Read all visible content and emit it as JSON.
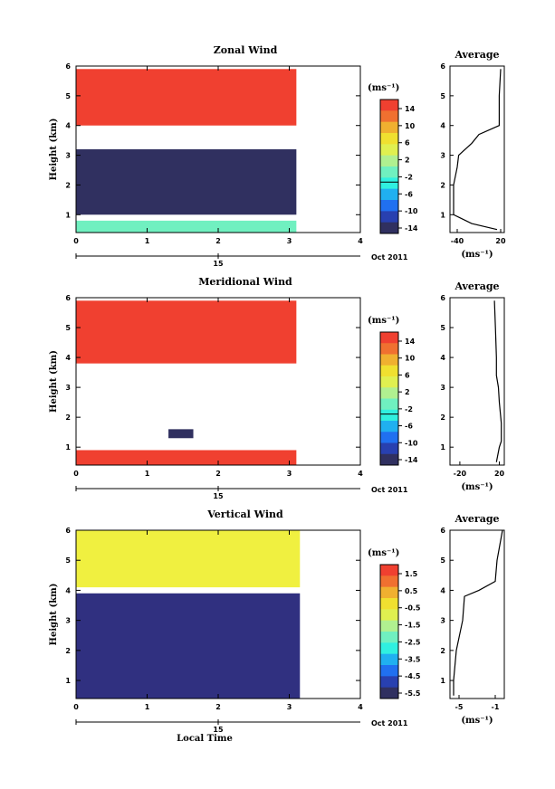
{
  "chart_data": [
    {
      "type": "heatmap",
      "title": "Zonal Wind",
      "ylabel": "Height (km)",
      "xlim": [
        0,
        4
      ],
      "ylim": [
        0.4,
        6
      ],
      "x_ticks": [
        "0",
        "1",
        "2",
        "3",
        "4"
      ],
      "y_ticks": [
        "1",
        "2",
        "3",
        "4",
        "5",
        "6"
      ],
      "date_ticks": [
        "15"
      ],
      "date_label": "Oct 2011",
      "colorbar": {
        "unit": "(ms⁻¹)",
        "ticks": [
          "14",
          "10",
          "6",
          "2",
          "-2",
          "-6",
          "-10",
          "-14"
        ],
        "range": [
          -16,
          16
        ]
      },
      "data_extent_x": [
        0,
        3.15
      ],
      "layers": [
        {
          "value": 16,
          "color": "#f04030",
          "y": [
            4.0,
            5.9
          ],
          "x": [
            0,
            3.1
          ]
        },
        {
          "value": -14,
          "color": "#303060",
          "y": [
            1.0,
            3.2
          ],
          "x": [
            0,
            3.1
          ]
        },
        {
          "value": 2,
          "color": "#70f0c0",
          "y": [
            0.4,
            0.8
          ],
          "x": [
            0,
            3.1
          ]
        }
      ],
      "average": {
        "title": "Average",
        "xlabel": "(ms⁻¹)",
        "xlim": [
          -50,
          25
        ],
        "x_ticks": [
          "-40",
          "20"
        ],
        "profile": [
          [
            5.9,
            20
          ],
          [
            5.0,
            18
          ],
          [
            4.0,
            18
          ],
          [
            3.7,
            -10
          ],
          [
            3.4,
            -20
          ],
          [
            3.0,
            -38
          ],
          [
            2.6,
            -40
          ],
          [
            2.0,
            -45
          ],
          [
            1.0,
            -45
          ],
          [
            0.7,
            -20
          ],
          [
            0.5,
            15
          ]
        ]
      }
    },
    {
      "type": "heatmap",
      "title": "Meridional Wind",
      "ylabel": "Height (km)",
      "xlim": [
        0,
        4
      ],
      "ylim": [
        0.4,
        6
      ],
      "x_ticks": [
        "0",
        "1",
        "2",
        "3",
        "4"
      ],
      "y_ticks": [
        "1",
        "2",
        "3",
        "4",
        "5",
        "6"
      ],
      "date_ticks": [
        "15"
      ],
      "date_label": "Oct 2011",
      "colorbar": {
        "unit": "(ms⁻¹)",
        "ticks": [
          "14",
          "10",
          "6",
          "2",
          "-2",
          "-6",
          "-10",
          "-14"
        ],
        "range": [
          -16,
          16
        ]
      },
      "data_extent_x": [
        0,
        3.15
      ],
      "layers": [
        {
          "value": 16,
          "color": "#f04030",
          "y": [
            3.8,
            5.9
          ],
          "x": [
            0,
            3.1
          ]
        },
        {
          "value": -14,
          "color": "#303060",
          "y": [
            1.3,
            1.6
          ],
          "x": [
            1.3,
            1.65
          ]
        },
        {
          "value": 16,
          "color": "#f04030",
          "y": [
            0.4,
            0.9
          ],
          "x": [
            0,
            3.1
          ]
        }
      ],
      "average": {
        "title": "Average",
        "xlabel": "(ms⁻¹)",
        "xlim": [
          -30,
          25
        ],
        "x_ticks": [
          "-20",
          "20"
        ],
        "profile": [
          [
            5.9,
            15
          ],
          [
            5.0,
            16
          ],
          [
            4.0,
            17
          ],
          [
            3.4,
            17
          ],
          [
            3.0,
            19
          ],
          [
            2.5,
            20
          ],
          [
            1.8,
            22
          ],
          [
            1.2,
            22
          ],
          [
            1.0,
            20
          ],
          [
            0.5,
            17
          ]
        ]
      }
    },
    {
      "type": "heatmap",
      "title": "Vertical Wind",
      "xlabel": "Local Time",
      "ylabel": "Height (km)",
      "xlim": [
        0,
        4
      ],
      "ylim": [
        0.4,
        6
      ],
      "x_ticks": [
        "0",
        "1",
        "2",
        "3",
        "4"
      ],
      "y_ticks": [
        "1",
        "2",
        "3",
        "4",
        "5",
        "6"
      ],
      "date_ticks": [
        "15"
      ],
      "date_label": "Oct 2011",
      "colorbar": {
        "unit": "(ms⁻¹)",
        "ticks": [
          "1.5",
          "0.5",
          "-0.5",
          "-1.5",
          "-2.5",
          "-3.5",
          "-4.5",
          "-5.5"
        ],
        "range": [
          -6,
          2
        ]
      },
      "data_extent_x": [
        0,
        3.15
      ],
      "layers": [
        {
          "value": 0.5,
          "color": "#f0f040",
          "y": [
            4.1,
            6.0
          ],
          "x": [
            0,
            3.15
          ]
        },
        {
          "value": -5.5,
          "color": "#303080",
          "y": [
            0.4,
            3.9
          ],
          "x": [
            0,
            3.15
          ]
        }
      ],
      "average": {
        "title": "Average",
        "xlabel": "(ms⁻¹)",
        "xlim": [
          -6,
          0
        ],
        "x_ticks": [
          "-5",
          "-1"
        ],
        "profile": [
          [
            6.0,
            -0.2
          ],
          [
            5.0,
            -0.8
          ],
          [
            4.3,
            -1.0
          ],
          [
            4.0,
            -2.8
          ],
          [
            3.8,
            -4.4
          ],
          [
            3.0,
            -4.6
          ],
          [
            2.0,
            -5.3
          ],
          [
            1.0,
            -5.6
          ],
          [
            0.5,
            -5.6
          ]
        ]
      }
    }
  ]
}
